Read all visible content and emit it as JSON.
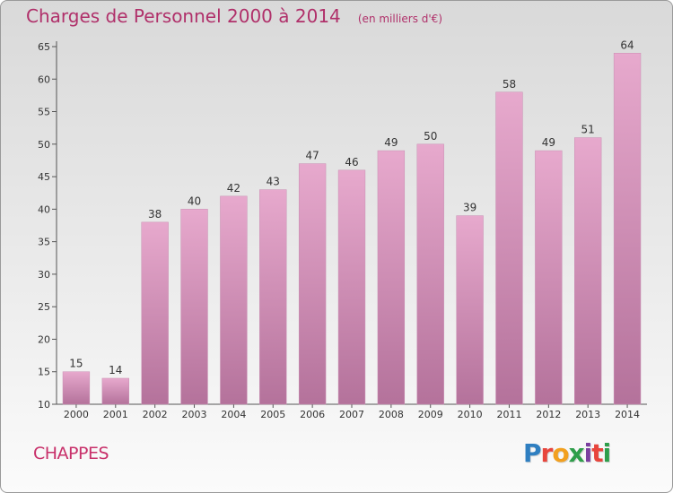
{
  "chart_data": {
    "type": "bar",
    "title": "Charges de Personnel 2000 à 2014",
    "unit_note": "(en milliers d'€)",
    "categories": [
      "2000",
      "2001",
      "2002",
      "2003",
      "2004",
      "2005",
      "2006",
      "2007",
      "2008",
      "2009",
      "2010",
      "2011",
      "2012",
      "2013",
      "2014"
    ],
    "values": [
      15,
      14,
      38,
      40,
      42,
      43,
      47,
      46,
      49,
      50,
      39,
      58,
      49,
      51,
      64
    ],
    "ylim": [
      10,
      65
    ],
    "yticks": [
      10,
      15,
      20,
      25,
      30,
      35,
      40,
      45,
      50,
      55,
      60,
      65
    ],
    "xlabel": "",
    "ylabel": "",
    "grid": false,
    "colors": {
      "bar_top": "#e7a9cd",
      "bar_bottom": "#b4729b",
      "title": "#b0306a"
    }
  },
  "commune": "CHAPPES",
  "logo": {
    "text": "Proxiti",
    "letter_colors": [
      "#2f7fc1",
      "#e8453c",
      "#f2a01f",
      "#2e9e4a",
      "#7b3fa0",
      "#e8453c",
      "#2e9e4a"
    ]
  }
}
